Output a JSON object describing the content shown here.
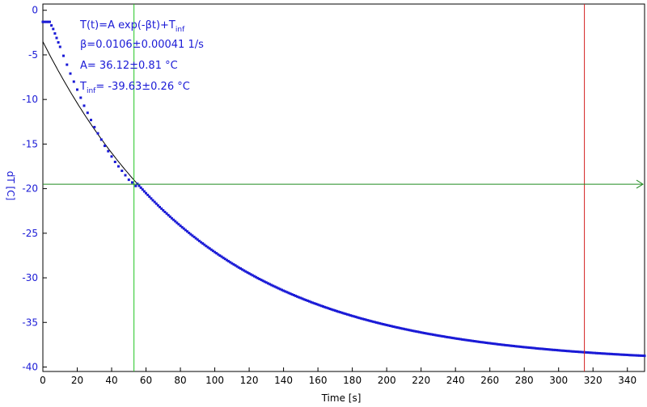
{
  "chart_data": {
    "type": "scatter",
    "xlabel": "Time [s]",
    "ylabel": "dT [C]",
    "xlim": [
      0,
      350
    ],
    "ylim": [
      -40.5,
      0.7
    ],
    "x_ticks": [
      0,
      20,
      40,
      60,
      80,
      100,
      120,
      140,
      160,
      180,
      200,
      220,
      240,
      260,
      280,
      300,
      320,
      340
    ],
    "y_ticks": [
      0,
      -5,
      -10,
      -15,
      -20,
      -25,
      -30,
      -35,
      -40
    ],
    "grid": false,
    "model": {
      "A": 36.12,
      "beta": 0.0106,
      "T_inf": -39.63
    },
    "annotations": [
      {
        "main": "T(t)=A exp(-βt)+T",
        "sub": "inf"
      },
      {
        "main": "β=0.0106±0.00041 1/s",
        "sub": ""
      },
      {
        "main": "A= 36.12±0.81 °C",
        "sub": ""
      },
      {
        "pre": "T",
        "sub": "inf",
        "main": "= -39.63±0.26 °C"
      }
    ],
    "cursors": {
      "vertical_green_x": 53,
      "vertical_red_x": 315,
      "horizontal_green_y": -19.5
    },
    "colors": {
      "data": "#1a1ad6",
      "fit": "#000000",
      "cursor_green": "#22c422",
      "cursor_red": "#d42020",
      "h_cursor": "#1f8a1f"
    },
    "series": [
      {
        "name": "",
        "x_start": 0,
        "x_end": 350,
        "x_step": 1,
        "early_points": [
          [
            0,
            -1.3
          ],
          [
            1,
            -1.3
          ],
          [
            2,
            -1.3
          ],
          [
            3,
            -1.3
          ],
          [
            4,
            -1.3
          ],
          [
            5,
            -1.7
          ],
          [
            6,
            -2.1
          ],
          [
            7,
            -2.6
          ],
          [
            8,
            -3.1
          ],
          [
            9,
            -3.6
          ],
          [
            10,
            -4.1
          ],
          [
            12,
            -5.1
          ],
          [
            14,
            -6.1
          ],
          [
            16,
            -7.1
          ],
          [
            18,
            -8.0
          ],
          [
            20,
            -8.9
          ],
          [
            22,
            -9.8
          ],
          [
            24,
            -10.7
          ],
          [
            26,
            -11.5
          ],
          [
            28,
            -12.3
          ],
          [
            30,
            -13.1
          ],
          [
            32,
            -13.8
          ],
          [
            34,
            -14.5
          ],
          [
            36,
            -15.2
          ],
          [
            38,
            -15.8
          ],
          [
            40,
            -16.4
          ],
          [
            42,
            -17.0
          ],
          [
            44,
            -17.5
          ],
          [
            46,
            -18.0
          ],
          [
            48,
            -18.5
          ],
          [
            50,
            -19.0
          ],
          [
            52,
            -19.3
          ],
          [
            54,
            -19.7
          ]
        ]
      }
    ]
  }
}
